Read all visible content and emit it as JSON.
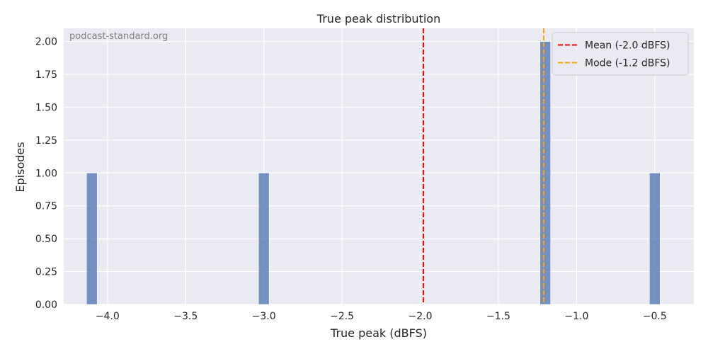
{
  "chart_data": {
    "type": "bar",
    "title": "True peak distribution",
    "xlabel": "True peak (dBFS)",
    "ylabel": "Episodes",
    "watermark": "podcast-standard.org",
    "xlim": [
      -4.28,
      -0.25
    ],
    "ylim": [
      0,
      2.1
    ],
    "x_ticks": [
      -4.0,
      -3.5,
      -3.0,
      -2.5,
      -2.0,
      -1.5,
      -1.0,
      -0.5
    ],
    "x_tick_labels": [
      "−4.0",
      "−3.5",
      "−3.0",
      "−2.5",
      "−2.0",
      "−1.5",
      "−1.0",
      "−0.5"
    ],
    "y_ticks": [
      0,
      0.25,
      0.5,
      0.75,
      1.0,
      1.25,
      1.5,
      1.75,
      2.0
    ],
    "y_tick_labels": [
      "0.00",
      "0.25",
      "0.50",
      "0.75",
      "1.00",
      "1.25",
      "1.50",
      "1.75",
      "2.00"
    ],
    "bin_width": 0.068,
    "bins": [
      {
        "x": -4.1,
        "count": 1
      },
      {
        "x": -3.0,
        "count": 1
      },
      {
        "x": -1.2,
        "count": 2
      },
      {
        "x": -0.5,
        "count": 1
      }
    ],
    "bar_color": "#4c72b0",
    "reference_lines": [
      {
        "value": -1.98,
        "label": "Mean (-2.0 dBFS)",
        "color": "#ff0000"
      },
      {
        "value": -1.21,
        "label": "Mode (-1.2 dBFS)",
        "color": "#ffa500"
      }
    ],
    "grid": true,
    "legend_position": "top-right",
    "background": "#eaeaf2"
  }
}
